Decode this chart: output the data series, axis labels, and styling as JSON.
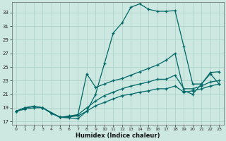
{
  "xlabel": "Humidex (Indice chaleur)",
  "background_color": "#cce8e0",
  "grid_color": "#aacfc8",
  "line_color": "#006868",
  "xlim": [
    -0.5,
    23.5
  ],
  "ylim": [
    16.5,
    34.5
  ],
  "xticks": [
    0,
    1,
    2,
    3,
    4,
    5,
    6,
    7,
    8,
    9,
    10,
    11,
    12,
    13,
    14,
    15,
    16,
    17,
    18,
    19,
    20,
    21,
    22,
    23
  ],
  "yticks": [
    17,
    19,
    21,
    23,
    25,
    27,
    29,
    31,
    33
  ],
  "curve1_x": [
    0,
    1,
    2,
    3,
    4,
    5,
    6,
    7,
    8,
    9,
    10,
    11,
    12,
    13,
    14,
    15,
    16,
    17,
    18,
    19,
    20,
    21,
    22,
    23
  ],
  "curve1_y": [
    18.5,
    19.0,
    19.2,
    19.0,
    18.2,
    17.6,
    17.5,
    17.4,
    18.5,
    21.0,
    25.5,
    30.0,
    31.5,
    33.8,
    34.3,
    33.5,
    33.2,
    33.2,
    33.3,
    28.0,
    22.5,
    22.5,
    24.2,
    24.3
  ],
  "curve2_x": [
    0,
    1,
    2,
    3,
    5,
    6,
    7,
    8,
    9,
    10,
    11,
    12,
    13,
    14,
    15,
    16,
    17,
    18,
    19,
    20,
    21,
    22,
    23
  ],
  "curve2_y": [
    18.5,
    19.0,
    19.2,
    19.0,
    17.6,
    17.6,
    18.0,
    24.0,
    22.0,
    22.5,
    23.0,
    23.3,
    23.8,
    24.3,
    24.8,
    25.3,
    26.0,
    27.0,
    21.5,
    21.0,
    22.5,
    24.0,
    22.5
  ],
  "curve3_x": [
    0,
    1,
    2,
    3,
    4,
    5,
    6,
    7,
    8,
    9,
    10,
    11,
    12,
    13,
    14,
    15,
    16,
    17,
    18,
    19,
    20,
    21,
    22,
    23
  ],
  "curve3_y": [
    18.5,
    19.0,
    19.2,
    19.0,
    18.2,
    17.6,
    17.8,
    18.0,
    19.0,
    20.0,
    20.8,
    21.3,
    21.8,
    22.2,
    22.5,
    22.8,
    23.2,
    23.2,
    23.8,
    21.8,
    21.8,
    22.2,
    22.8,
    23.0
  ],
  "curve4_x": [
    0,
    1,
    2,
    3,
    4,
    5,
    6,
    7,
    8,
    9,
    10,
    11,
    12,
    13,
    14,
    15,
    16,
    17,
    18,
    19,
    20,
    21,
    22,
    23
  ],
  "curve4_y": [
    18.5,
    18.8,
    19.0,
    19.0,
    18.2,
    17.6,
    17.7,
    17.8,
    18.5,
    19.3,
    19.8,
    20.3,
    20.8,
    21.0,
    21.3,
    21.5,
    21.8,
    21.8,
    22.2,
    21.3,
    21.5,
    21.8,
    22.2,
    22.5
  ]
}
